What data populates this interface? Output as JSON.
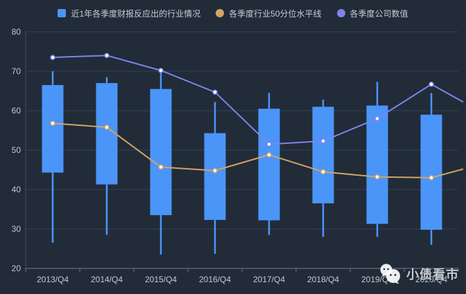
{
  "chart_data": {
    "type": "candlestick",
    "categories": [
      "2013/Q4",
      "2014/Q4",
      "2015/Q4",
      "2016/Q4",
      "2017/Q4",
      "2018/Q4",
      "2019/Q4",
      "2020/Q4"
    ],
    "ylim": [
      20,
      80
    ],
    "y_ticks": [
      20,
      30,
      40,
      50,
      60,
      70,
      80
    ],
    "grid": true,
    "legend_position": "top",
    "series": [
      {
        "name": "近1年各季度财报反应出的行业情况",
        "type": "candlestick",
        "color": "#4b95f9",
        "marker": "square",
        "values_format": [
          "low",
          "boxBottom",
          "boxTop",
          "high"
        ],
        "values": [
          [
            26.5,
            44.3,
            66.5,
            70.0
          ],
          [
            28.5,
            41.3,
            67.0,
            68.5
          ],
          [
            23.5,
            33.5,
            65.5,
            69.8
          ],
          [
            23.7,
            32.3,
            54.3,
            62.2
          ],
          [
            28.5,
            32.2,
            60.5,
            64.5
          ],
          [
            28.0,
            36.5,
            61.0,
            62.8
          ],
          [
            28.0,
            31.3,
            61.3,
            67.3
          ],
          [
            26.0,
            29.8,
            59.0,
            64.5
          ]
        ]
      },
      {
        "name": "各季度行业50分位水平线",
        "type": "line",
        "color": "#d2a465",
        "marker": "round",
        "values": [
          56.8,
          55.8,
          45.7,
          44.8,
          48.8,
          44.5,
          43.2,
          43.0
        ],
        "right_edge_value": 45.2
      },
      {
        "name": "各季度公司数值",
        "type": "line",
        "color": "#7e84e8",
        "marker": "round",
        "values": [
          73.5,
          74.0,
          70.2,
          64.7,
          51.5,
          52.3,
          58.0,
          66.7
        ],
        "right_edge_value": 62.2
      }
    ]
  },
  "colors": {
    "background": "#222b38",
    "gridline": "#31405c",
    "y_axis_line": "#3f4b66",
    "x_axis_line": "#707a8e",
    "axis_label": "#c2cbd8",
    "legend_text": "#c6cdd8",
    "candle": "#4b95f9",
    "median_line": "#d2a465",
    "company_line": "#7e84e8"
  },
  "watermark": {
    "text": "小债看市",
    "icon": "wechat-icon"
  }
}
